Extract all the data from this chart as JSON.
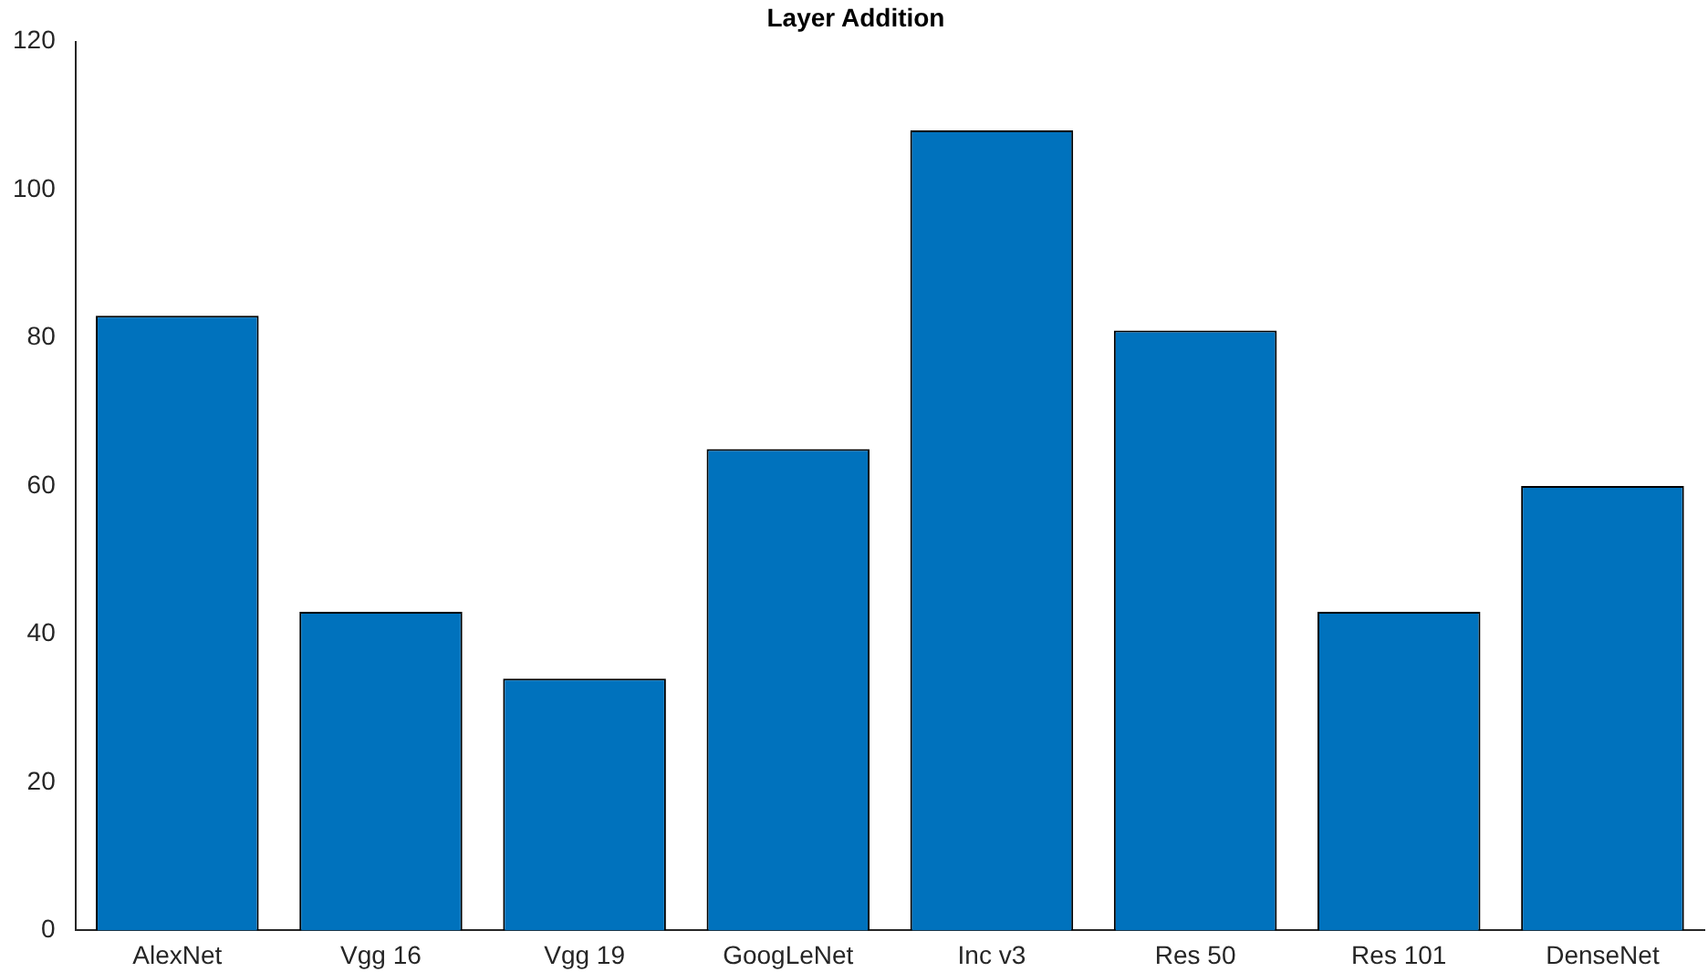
{
  "chart_data": {
    "type": "bar",
    "title": "Layer Addition",
    "categories": [
      "AlexNet",
      "Vgg 16",
      "Vgg 19",
      "GoogLeNet",
      "Inc v3",
      "Res 50",
      "Res 101",
      "DenseNet"
    ],
    "values": [
      83,
      43,
      34,
      65,
      108,
      81,
      43,
      60
    ],
    "color": "#0072bd",
    "ylim": [
      0,
      120
    ],
    "yticks": [
      0,
      20,
      40,
      60,
      80,
      100,
      120
    ],
    "grid": false,
    "legend": false
  }
}
